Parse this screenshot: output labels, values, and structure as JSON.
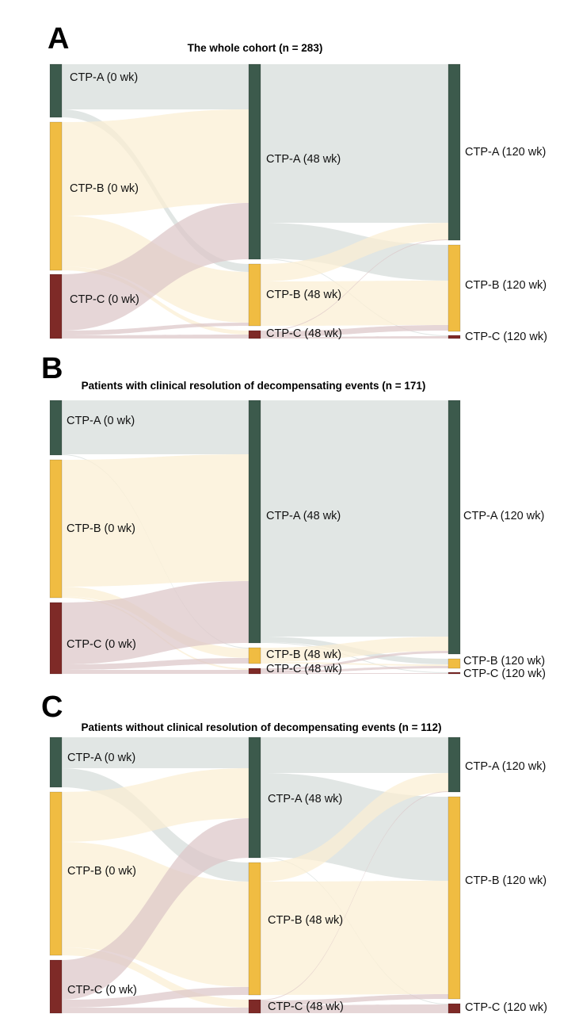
{
  "colors": {
    "CTP-A": "#3c5a4c",
    "CTP-B": "#f0bc42",
    "CTP-C": "#7e2a27",
    "link_A": "#d6dcd9",
    "link_B": "#fbefd2",
    "link_C": "#ddc6c7"
  },
  "panels": [
    {
      "letter": "A",
      "title": "The whole cohort (n = 283)",
      "columns": [
        [
          "CTP-A (0 wk)",
          "CTP-B (0 wk)",
          "CTP-C (0 wk)"
        ],
        [
          "CTP-A (48 wk)",
          "CTP-B (48 wk)",
          "CTP-C (48 wk)"
        ],
        [
          "CTP-A (120 wk)",
          "CTP-B (120 wk)",
          "CTP-C (120 wk)"
        ]
      ]
    },
    {
      "letter": "B",
      "title": "Patients with clinical resolution of decompensating events (n = 171)",
      "columns": [
        [
          "CTP-A (0 wk)",
          "CTP-B (0 wk)",
          "CTP-C (0 wk)"
        ],
        [
          "CTP-A (48 wk)",
          "CTP-B (48 wk)",
          "CTP-C (48 wk)"
        ],
        [
          "CTP-A (120 wk)",
          "CTP-B (120 wk)",
          "CTP-C (120 wk)"
        ]
      ]
    },
    {
      "letter": "C",
      "title": "Patients without clinical resolution of decompensating events (n = 112)",
      "columns": [
        [
          "CTP-A (0 wk)",
          "CTP-B (0 wk)",
          "CTP-C (0 wk)"
        ],
        [
          "CTP-A (48 wk)",
          "CTP-B (48 wk)",
          "CTP-C (48 wk)"
        ],
        [
          "CTP-A (120 wk)",
          "CTP-B (120 wk)",
          "CTP-C (120 wk)"
        ]
      ]
    }
  ]
}
